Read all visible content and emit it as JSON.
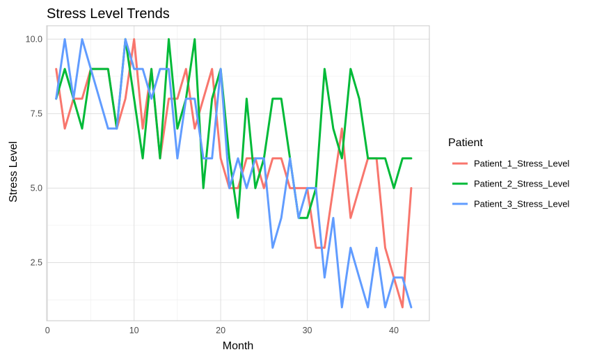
{
  "chart_data": {
    "type": "line",
    "title": "Stress Level Trends",
    "xlabel": "Month",
    "ylabel": "Stress Level",
    "legend_title": "Patient",
    "legend_position": "right",
    "grid": true,
    "xlim": [
      -0.1,
      44.1
    ],
    "ylim": [
      0.55,
      10.45
    ],
    "x_ticks": [
      0,
      10,
      20,
      30,
      40
    ],
    "y_ticks": [
      2.5,
      5.0,
      7.5,
      10.0
    ],
    "x_tick_labels": [
      "0",
      "10",
      "20",
      "30",
      "40"
    ],
    "y_tick_labels": [
      "2.5",
      "5.0",
      "7.5",
      "10.0"
    ],
    "x": [
      1,
      2,
      3,
      4,
      5,
      6,
      7,
      8,
      9,
      10,
      11,
      12,
      13,
      14,
      15,
      16,
      17,
      18,
      19,
      20,
      21,
      22,
      23,
      24,
      25,
      26,
      27,
      28,
      29,
      30,
      31,
      32,
      33,
      34,
      35,
      36,
      37,
      38,
      39,
      40,
      41,
      42
    ],
    "series": [
      {
        "name": "Patient_1_Stress_Level",
        "color": "#F8766D",
        "values": [
          9,
          7,
          8,
          8,
          9,
          9,
          9,
          7,
          8,
          10,
          7,
          9,
          6,
          8,
          8,
          9,
          7,
          8,
          9,
          6,
          5,
          5,
          6,
          6,
          5,
          6,
          6,
          5,
          5,
          5,
          3,
          3,
          5,
          7,
          4,
          5,
          6,
          6,
          3,
          2,
          1,
          5
        ]
      },
      {
        "name": "Patient_2_Stress_Level",
        "color": "#00BA38",
        "values": [
          8,
          9,
          8,
          7,
          9,
          9,
          9,
          7,
          10,
          8,
          6,
          9,
          6,
          10,
          7,
          8,
          10,
          5,
          8,
          9,
          6,
          4,
          8,
          5,
          6,
          8,
          8,
          6,
          4,
          4,
          5,
          9,
          7,
          6,
          9,
          8,
          6,
          6,
          6,
          5,
          6,
          6
        ]
      },
      {
        "name": "Patient_3_Stress_Level",
        "color": "#619CFF",
        "values": [
          8,
          10,
          8,
          10,
          9,
          8,
          7,
          7,
          10,
          9,
          9,
          8,
          9,
          9,
          6,
          8,
          8,
          6,
          6,
          9,
          5,
          6,
          5,
          6,
          6,
          3,
          4,
          6,
          4,
          5,
          5,
          2,
          4,
          1,
          3,
          2,
          1,
          3,
          1,
          2,
          2,
          1
        ]
      }
    ]
  }
}
